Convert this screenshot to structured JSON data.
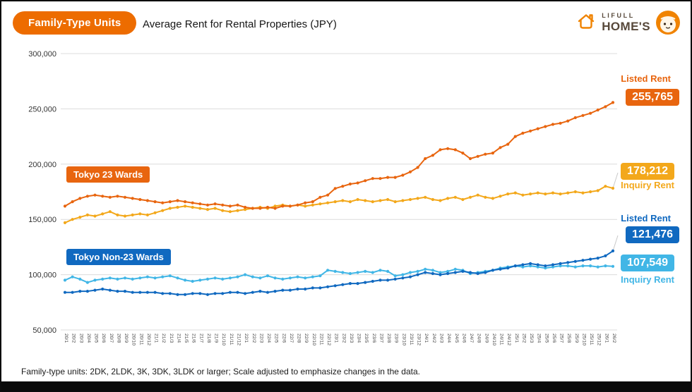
{
  "header": {
    "category_pill": "Family-Type Units",
    "title": "Average Rent for Rental Properties (JPY)",
    "logo": {
      "brand_top": "LIFULL",
      "brand_bottom": "HOME'S"
    }
  },
  "series_labels": {
    "tokyo23": "Tokyo 23 Wards",
    "non23": "Tokyo Non-23 Wards"
  },
  "annotations": {
    "listed_rent_23": {
      "label": "Listed Rent",
      "value": "255,765"
    },
    "inquiry_rent_23": {
      "label": "Inquiry Rent",
      "value": "178,212"
    },
    "listed_rent_non23": {
      "label": "Listed Rent",
      "value": "121,476"
    },
    "inquiry_rent_non23": {
      "label": "Inquiry Rent",
      "value": "107,549"
    }
  },
  "footnote": "Family-type units: 2DK, 2LDK, 3K, 3DK, 3LDK or larger; Scale adjusted to emphasize changes in the data.",
  "colors": {
    "orange": "#E8650F",
    "amber": "#F3A81B",
    "blue": "#1069C0",
    "light_blue": "#41B6E6",
    "pill_bg": "#ED6C00",
    "logo_orange": "#F08300",
    "logo_text": "#57483A",
    "grid": "#DCDCDC"
  },
  "chart_data": {
    "type": "line",
    "title": "Average Rent for Rental Properties (JPY)",
    "xlabel": "",
    "ylabel": "",
    "ylim": [
      50000,
      300000
    ],
    "ytick_step": 50000,
    "grid": true,
    "x": [
      "20/1",
      "20/2",
      "20/3",
      "20/4",
      "20/5",
      "20/6",
      "20/7",
      "20/8",
      "20/9",
      "20/10",
      "20/11",
      "20/12",
      "21/1",
      "21/2",
      "21/3",
      "21/4",
      "21/5",
      "21/6",
      "21/7",
      "21/8",
      "21/9",
      "21/10",
      "21/11",
      "21/12",
      "22/1",
      "22/2",
      "22/3",
      "22/4",
      "22/5",
      "22/6",
      "22/7",
      "22/8",
      "22/9",
      "22/10",
      "22/11",
      "22/12",
      "23/1",
      "23/2",
      "23/3",
      "23/4",
      "23/5",
      "23/6",
      "23/7",
      "23/8",
      "23/9",
      "23/10",
      "23/11",
      "23/12",
      "24/1",
      "24/2",
      "24/3",
      "24/4",
      "24/5",
      "24/6",
      "24/7",
      "24/8",
      "24/9",
      "24/10",
      "24/11",
      "24/12",
      "25/1",
      "25/2",
      "25/3",
      "25/4",
      "25/5",
      "25/6",
      "25/7",
      "25/8",
      "25/9",
      "25/10",
      "25/11",
      "25/12",
      "26/1",
      "26/2"
    ],
    "series": [
      {
        "name": "Tokyo 23 Wards Listed Rent",
        "color": "#E8650F",
        "final_value": 255765,
        "values": [
          162000,
          166000,
          169000,
          171000,
          172000,
          171000,
          170000,
          171000,
          170000,
          169000,
          168000,
          167000,
          166000,
          165000,
          166000,
          167000,
          166000,
          165000,
          164000,
          163000,
          164000,
          163000,
          162000,
          163000,
          161000,
          160000,
          160000,
          161000,
          160000,
          162000,
          162000,
          163000,
          165000,
          166000,
          170000,
          172000,
          178000,
          180000,
          182000,
          183000,
          185000,
          187000,
          187000,
          188000,
          188000,
          190000,
          193000,
          197000,
          205000,
          208000,
          213000,
          214000,
          213000,
          210000,
          205000,
          207000,
          209000,
          210000,
          215000,
          218000,
          225000,
          228000,
          230000,
          232000,
          234000,
          236000,
          237000,
          239000,
          242000,
          244000,
          246000,
          249000,
          252000,
          255765
        ]
      },
      {
        "name": "Tokyo 23 Wards Inquiry Rent",
        "color": "#F3A81B",
        "final_value": 178212,
        "values": [
          147000,
          150000,
          152000,
          154000,
          153000,
          155000,
          157000,
          154000,
          153000,
          154000,
          155000,
          154000,
          156000,
          158000,
          160000,
          161000,
          162000,
          161000,
          160000,
          159000,
          160000,
          158000,
          157000,
          158000,
          159000,
          160000,
          161000,
          160000,
          162000,
          163000,
          162000,
          163000,
          162000,
          163000,
          164000,
          165000,
          166000,
          167000,
          166000,
          168000,
          167000,
          166000,
          167000,
          168000,
          166000,
          167000,
          168000,
          169000,
          170000,
          168000,
          167000,
          169000,
          170000,
          168000,
          170000,
          172000,
          170000,
          169000,
          171000,
          173000,
          174000,
          172000,
          173000,
          174000,
          173000,
          174000,
          173000,
          174000,
          175000,
          174000,
          175000,
          176000,
          180000,
          178212
        ]
      },
      {
        "name": "Tokyo Non-23 Wards Listed Rent",
        "color": "#1069C0",
        "final_value": 121476,
        "values": [
          84000,
          84000,
          85000,
          85000,
          86000,
          87000,
          86000,
          85000,
          85000,
          84000,
          84000,
          84000,
          84000,
          83000,
          83000,
          82000,
          82000,
          83000,
          83000,
          82000,
          83000,
          83000,
          84000,
          84000,
          83000,
          84000,
          85000,
          84000,
          85000,
          86000,
          86000,
          87000,
          87000,
          88000,
          88000,
          89000,
          90000,
          91000,
          92000,
          92000,
          93000,
          94000,
          95000,
          95000,
          96000,
          97000,
          98000,
          100000,
          102000,
          101000,
          100000,
          101000,
          102000,
          103000,
          102000,
          101000,
          102000,
          104000,
          105000,
          106000,
          108000,
          109000,
          110000,
          109000,
          108000,
          109000,
          110000,
          111000,
          112000,
          113000,
          114000,
          115000,
          117000,
          121476
        ]
      },
      {
        "name": "Tokyo Non-23 Wards Inquiry Rent",
        "color": "#41B6E6",
        "final_value": 107549,
        "values": [
          95000,
          98000,
          96000,
          93000,
          95000,
          96000,
          97000,
          96000,
          97000,
          96000,
          97000,
          98000,
          97000,
          98000,
          99000,
          97000,
          95000,
          94000,
          95000,
          96000,
          97000,
          96000,
          97000,
          98000,
          100000,
          98000,
          97000,
          99000,
          97000,
          96000,
          97000,
          98000,
          97000,
          98000,
          99000,
          104000,
          103000,
          102000,
          101000,
          102000,
          103000,
          102000,
          104000,
          103000,
          99000,
          100000,
          102000,
          103000,
          105000,
          104000,
          102000,
          103000,
          105000,
          104000,
          101000,
          102000,
          103000,
          104000,
          106000,
          107000,
          108000,
          107000,
          108000,
          107000,
          106000,
          107000,
          108000,
          108000,
          107000,
          108000,
          108000,
          107000,
          108000,
          107549
        ]
      }
    ],
    "legend_position": "inline-badges"
  }
}
